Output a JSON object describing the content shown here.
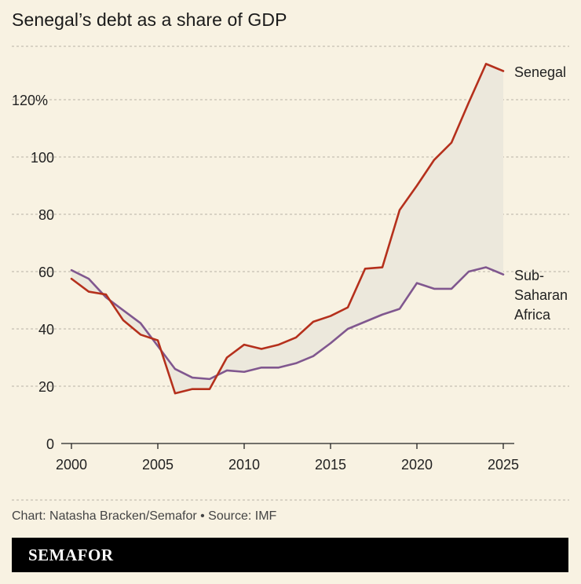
{
  "title": "Senegal’s debt as a share of GDP",
  "credit": "Chart: Natasha Bracken/Semafor • Source: IMF",
  "brand": "SEMAFOR",
  "colors": {
    "background": "#f8f2e2",
    "senegal": "#b5301c",
    "ssa": "#80578f",
    "gap_fill": "#ece8dc",
    "grid": "#b9b3a6"
  },
  "chart_data": {
    "type": "line",
    "x": [
      2000,
      2001,
      2002,
      2003,
      2004,
      2005,
      2006,
      2007,
      2008,
      2009,
      2010,
      2011,
      2012,
      2013,
      2014,
      2015,
      2016,
      2017,
      2018,
      2019,
      2020,
      2021,
      2022,
      2023,
      2024,
      2025
    ],
    "series": [
      {
        "name": "Senegal",
        "color": "#b5301c",
        "values": [
          57.5,
          53,
          52,
          43,
          38,
          36,
          17.5,
          19,
          19,
          30,
          34.5,
          33,
          34.5,
          37,
          42.5,
          44.5,
          47.5,
          61,
          61.5,
          81.5,
          90,
          99,
          105,
          119,
          132.5,
          130
        ]
      },
      {
        "name": "Sub-Saharan Africa",
        "label_lines": [
          "Sub-",
          "Saharan",
          "Africa"
        ],
        "color": "#80578f",
        "values": [
          60.5,
          57.5,
          51,
          46.5,
          42,
          34,
          26,
          23,
          22.5,
          25.5,
          25,
          26.5,
          26.5,
          28,
          30.5,
          35,
          40,
          42.5,
          45,
          47,
          56,
          54,
          54,
          60,
          61.5,
          59
        ]
      }
    ],
    "fill_between": true,
    "xlabel": "",
    "ylabel": "",
    "xlim": [
      2000,
      2025
    ],
    "ylim": [
      0,
      137
    ],
    "x_ticks": [
      2000,
      2005,
      2010,
      2015,
      2020,
      2025
    ],
    "x_tick_labels": [
      "2000",
      "2005",
      "2010",
      "2015",
      "2020",
      "2025"
    ],
    "y_ticks": [
      0,
      20,
      40,
      60,
      80,
      100,
      120
    ],
    "y_tick_labels": [
      "0",
      "20",
      "40",
      "60",
      "80",
      "100",
      "120%"
    ],
    "grid": "horizontal dashed",
    "legend": "direct labels at right"
  }
}
